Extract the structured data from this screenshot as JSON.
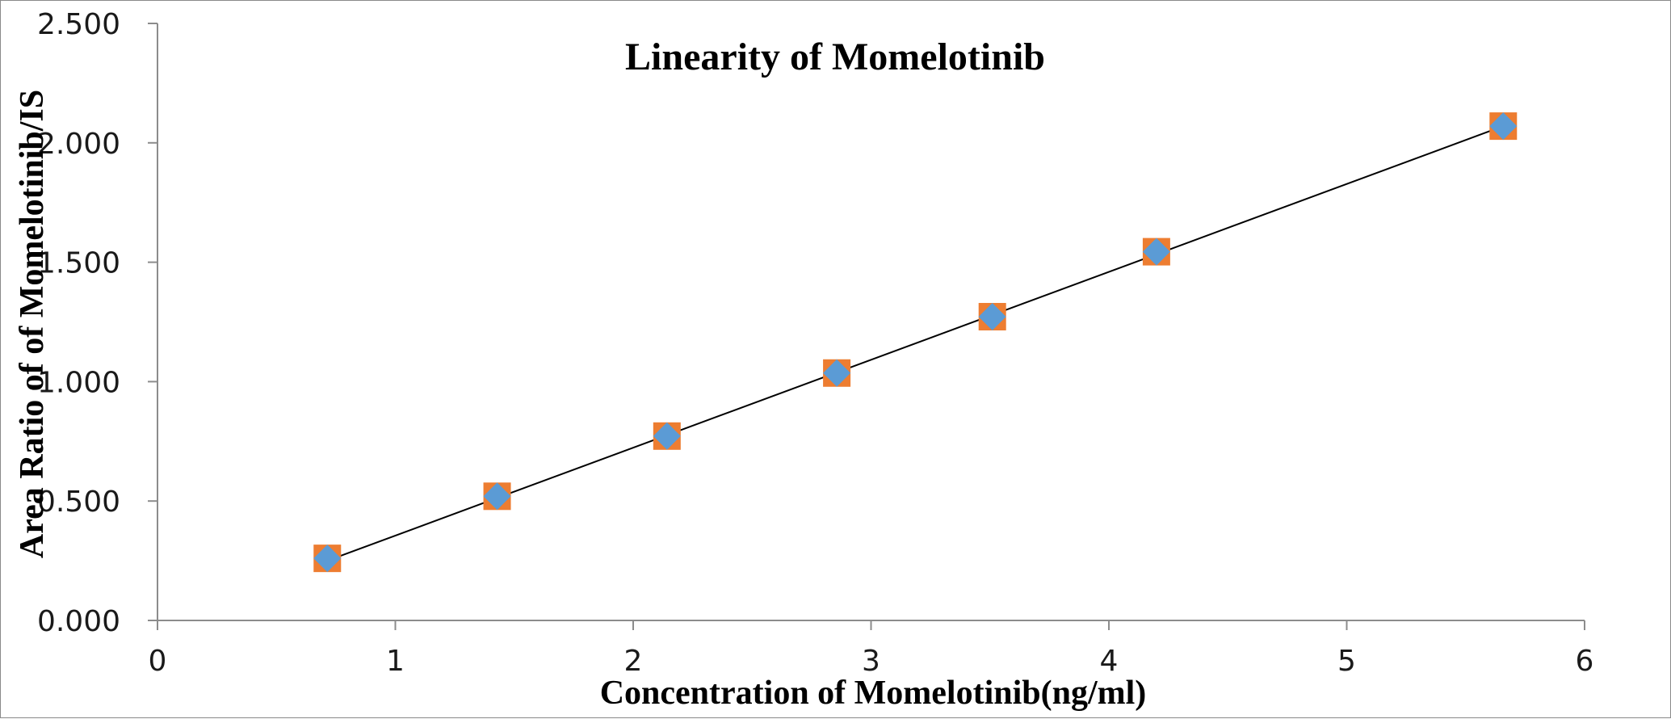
{
  "chart_data": {
    "type": "scatter",
    "title": "Linearity of Momelotinib",
    "xlabel": "Concentration of Momelotinib(ng/ml)",
    "ylabel": "Area Ratio of of Momelotinib/IS",
    "xlim": [
      0,
      6
    ],
    "ylim": [
      0,
      2.5
    ],
    "x_ticks": [
      "0",
      "1",
      "2",
      "3",
      "4",
      "5",
      "6"
    ],
    "y_ticks": [
      "0.000",
      "0.500",
      "1.000",
      "1.500",
      "2.000",
      "2.500"
    ],
    "grid": false,
    "legend": "none",
    "series": [
      {
        "marker": "square",
        "color": "#ED7D31",
        "x": [
          0.714,
          1.428,
          2.142,
          2.856,
          3.51,
          4.2,
          5.658
        ],
        "y": [
          0.26,
          0.52,
          0.772,
          1.036,
          1.272,
          1.544,
          2.07
        ]
      },
      {
        "marker": "diamond",
        "color": "#5B9BD5",
        "x": [
          0.714,
          1.428,
          2.142,
          2.856,
          3.51,
          4.2,
          5.658
        ],
        "y": [
          0.26,
          0.52,
          0.772,
          1.036,
          1.272,
          1.544,
          2.07
        ]
      }
    ],
    "trendline": {
      "type": "linear",
      "color": "#000000",
      "x": [
        0.714,
        5.658
      ],
      "y": [
        0.25,
        2.07
      ]
    }
  }
}
